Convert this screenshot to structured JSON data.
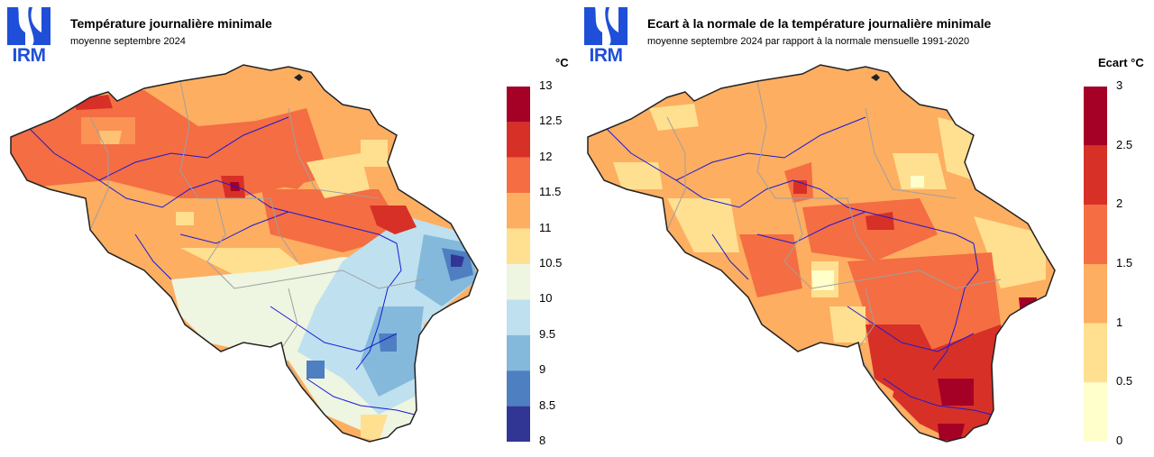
{
  "logo": {
    "text": "IRM",
    "color": "#1f4fd8"
  },
  "panels": [
    {
      "title": "Température journalière minimale",
      "subtitle": "moyenne septembre 2024",
      "unit": "°C",
      "legend_ticks": [
        "13",
        "12.5",
        "12",
        "11.5",
        "11",
        "10.5",
        "10",
        "9.5",
        "9",
        "8.5",
        "8"
      ],
      "legend_colors": [
        "#a50026",
        "#d73027",
        "#f46d43",
        "#fdae61",
        "#fee090",
        "#eef5e0",
        "#bfe0ef",
        "#84b9db",
        "#4e7fc0",
        "#313695"
      ]
    },
    {
      "title": "Ecart à la normale de la température journalière minimale",
      "subtitle": "moyenne septembre 2024 par rapport à la normale mensuelle 1991-2020",
      "unit": "Ecart °C",
      "legend_ticks": [
        "3",
        "2.5",
        "2",
        "1.5",
        "1",
        "0.5",
        "0"
      ],
      "legend_colors": [
        "#a50026",
        "#d73027",
        "#f46d43",
        "#fdae61",
        "#fee090",
        "#ffffcc"
      ]
    }
  ]
}
